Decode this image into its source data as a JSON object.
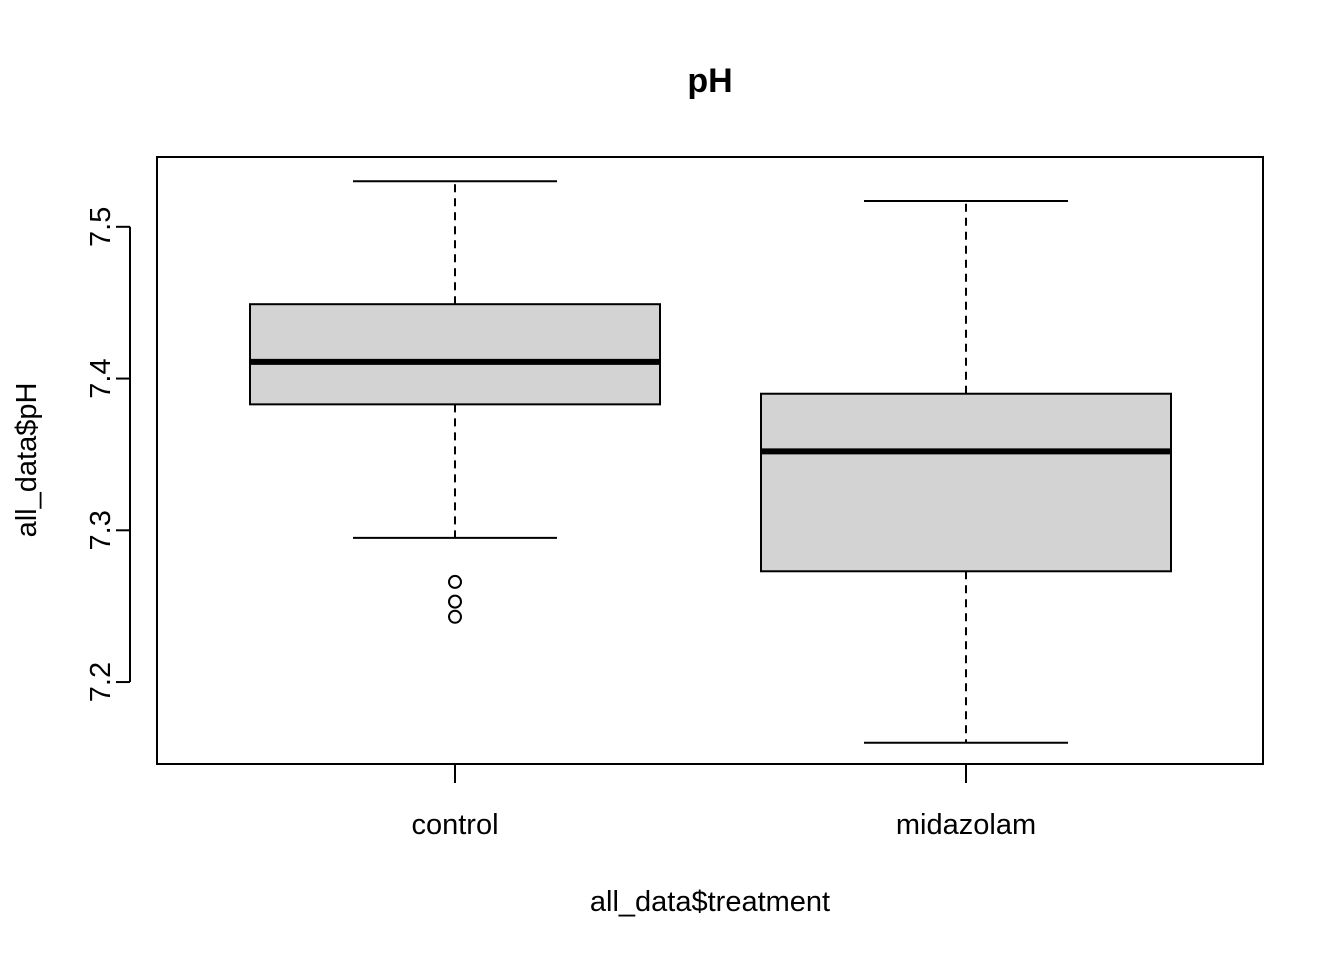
{
  "chart_data": {
    "type": "boxplot",
    "title": "pH",
    "xlabel": "all_data$treatment",
    "ylabel": "all_data$pH",
    "categories": [
      "control",
      "midazolam"
    ],
    "boxes": [
      {
        "category": "control",
        "whisker_low": 7.295,
        "q1": 7.383,
        "median": 7.411,
        "q3": 7.449,
        "whisker_high": 7.53,
        "outliers": [
          7.243,
          7.253,
          7.266
        ]
      },
      {
        "category": "midazolam",
        "whisker_low": 7.16,
        "q1": 7.273,
        "median": 7.352,
        "q3": 7.39,
        "whisker_high": 7.517,
        "outliers": []
      }
    ],
    "yticks": [
      7.2,
      7.3,
      7.4,
      7.5
    ],
    "ytick_labels": [
      "7.2",
      "7.3",
      "7.4",
      "7.5"
    ],
    "ylim": [
      7.146,
      7.546
    ],
    "box_color": "#d3d3d3",
    "grid": false,
    "legend": "none"
  }
}
